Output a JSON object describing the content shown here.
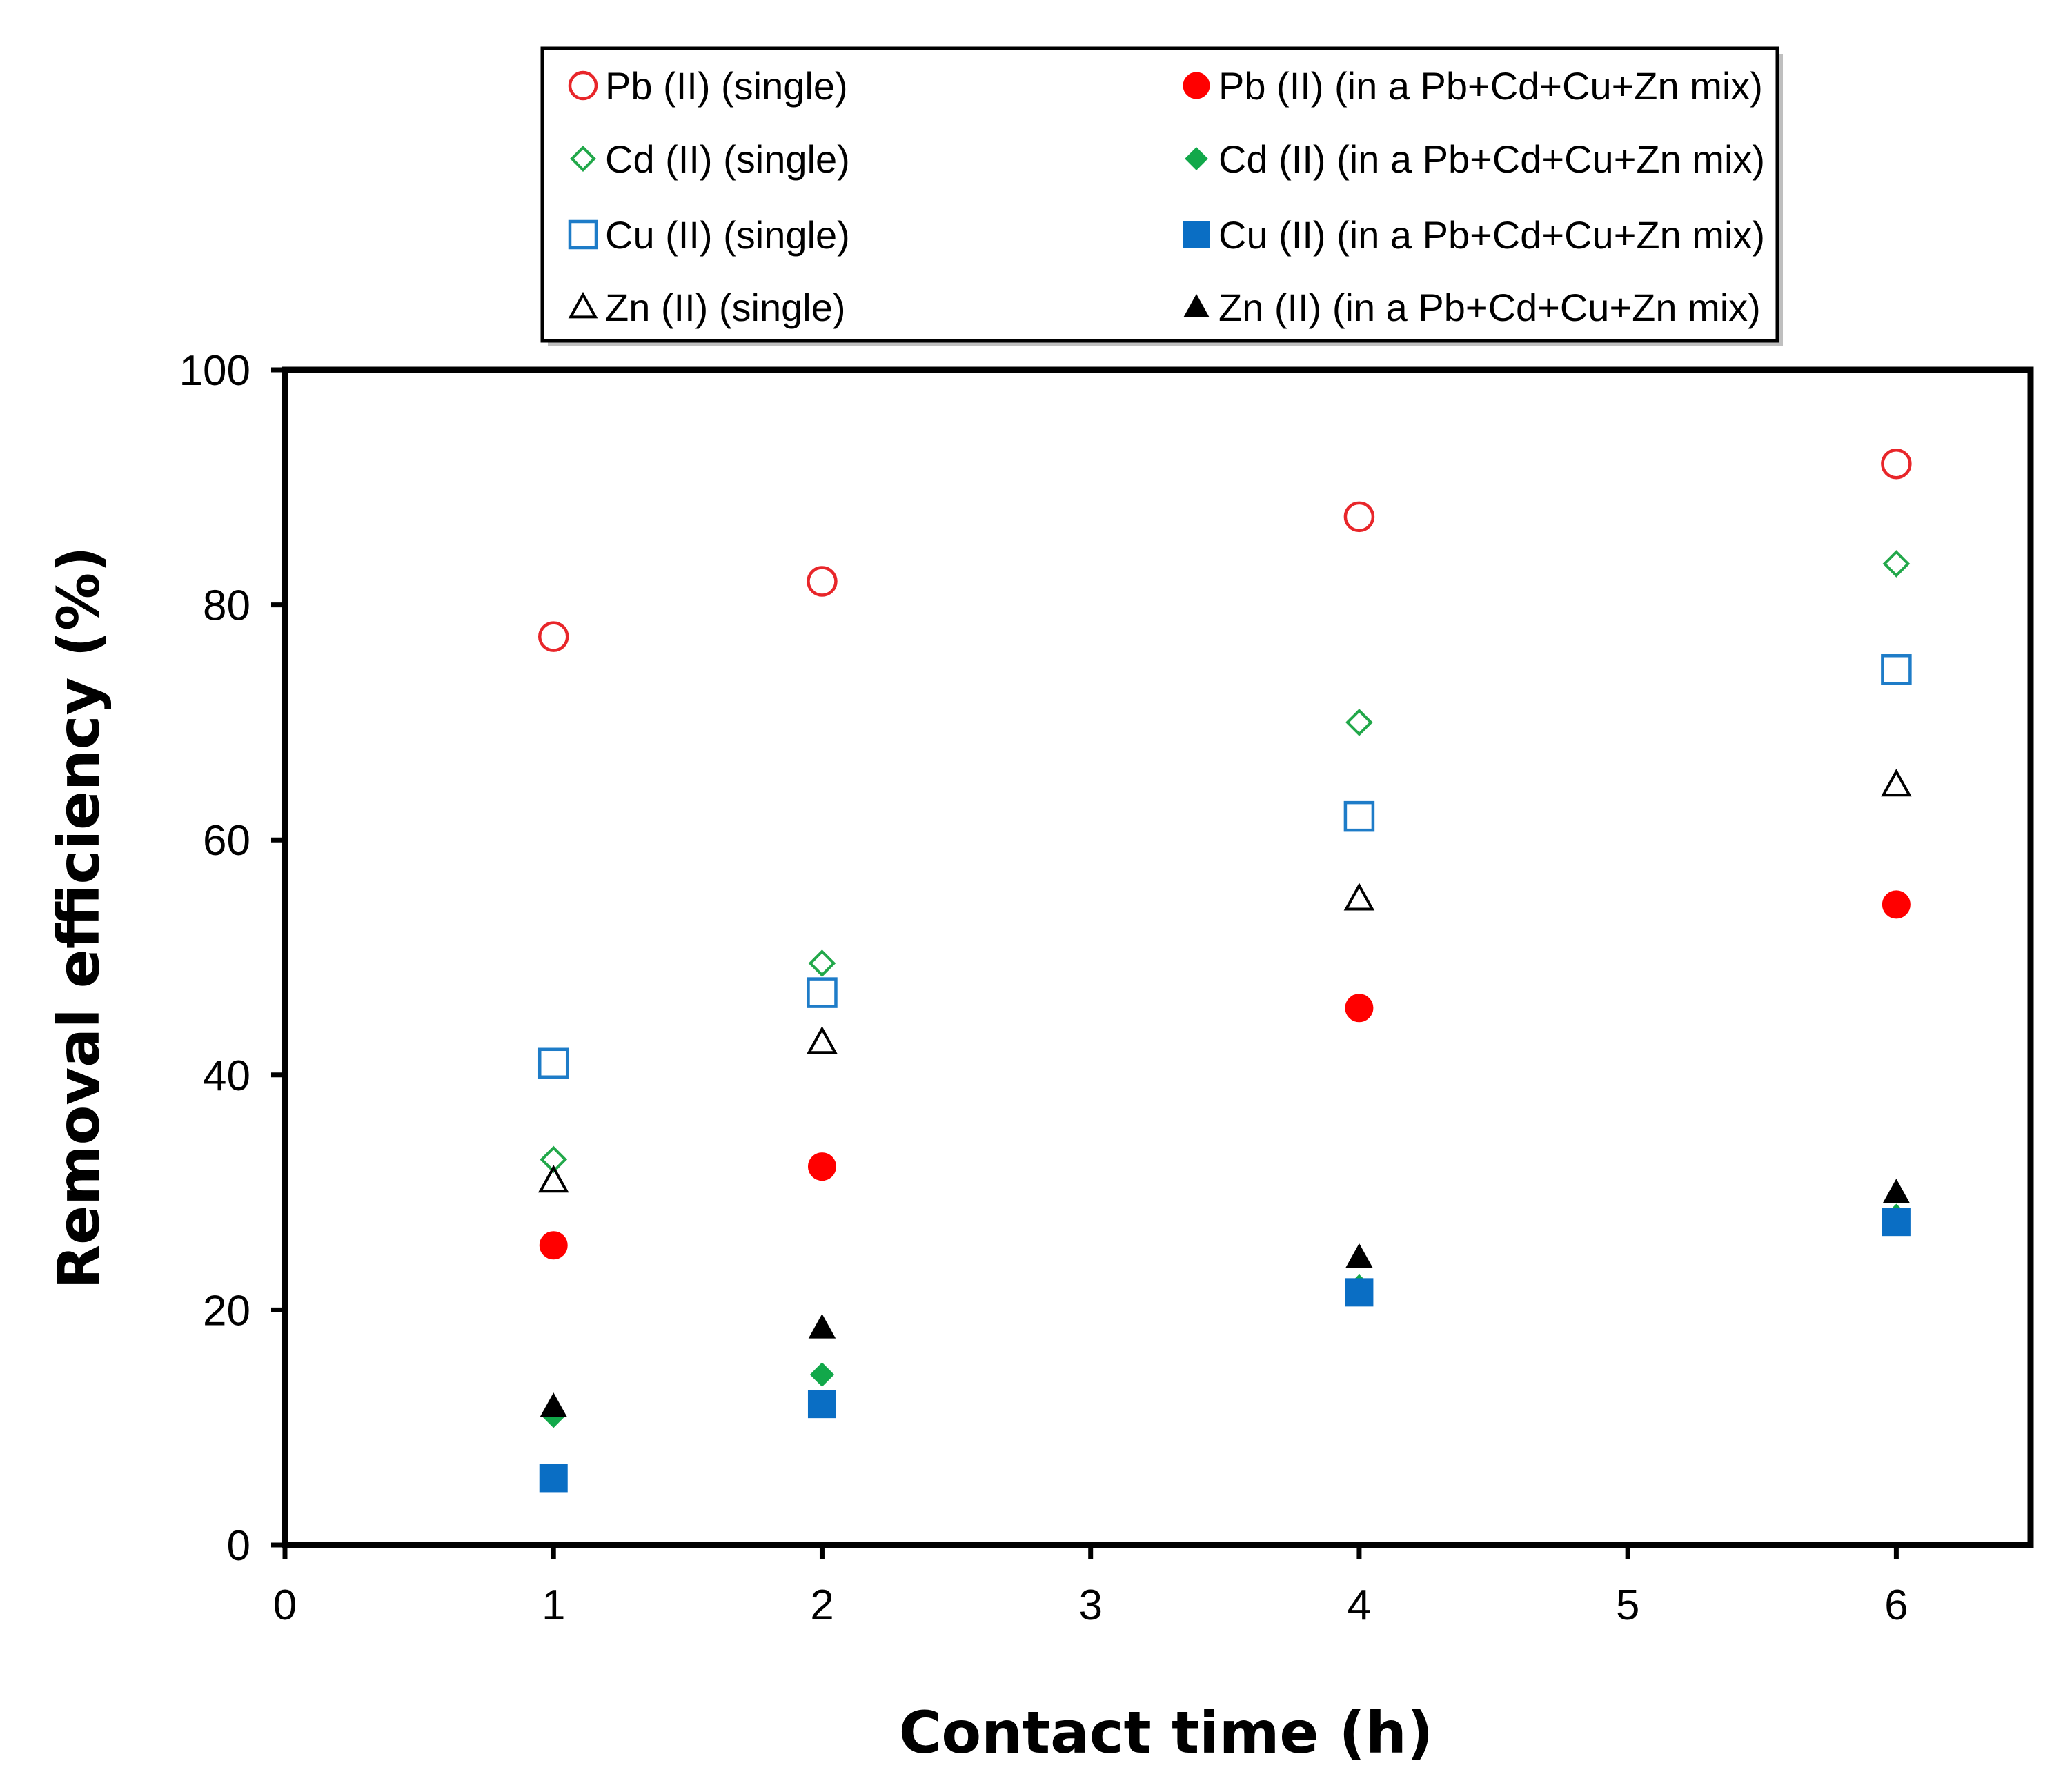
{
  "chart_data": {
    "type": "scatter",
    "title": "",
    "xlabel": "Contact time (h)",
    "ylabel": "Removal efficiency (%)",
    "xlim": [
      0,
      6.5
    ],
    "ylim": [
      0,
      100
    ],
    "xticks": [
      0,
      1,
      2,
      3,
      4,
      5,
      6
    ],
    "yticks": [
      0,
      20,
      40,
      60,
      80,
      100
    ],
    "grid": false,
    "legend_position": "top, above plot",
    "series": [
      {
        "name": "Pb (II) (single)",
        "marker": "circle",
        "filled": false,
        "color": "#e8262a",
        "x": [
          1,
          2,
          4,
          6
        ],
        "y": [
          77.3,
          82,
          87.5,
          92
        ]
      },
      {
        "name": "Pb (II) (in a Pb+Cd+Cu+Zn mix)",
        "marker": "circle",
        "filled": true,
        "color": "#ff0000",
        "x": [
          1,
          2,
          4,
          6
        ],
        "y": [
          25.5,
          32.2,
          45.7,
          54.5
        ]
      },
      {
        "name": "Cd (II) (single)",
        "marker": "diamond",
        "filled": false,
        "color": "#22a84a",
        "x": [
          1,
          2,
          4,
          6
        ],
        "y": [
          32.8,
          49.5,
          70,
          83.5
        ]
      },
      {
        "name": "Cd (II) (in a Pb+Cd+Cu+Zn mix)",
        "marker": "diamond",
        "filled": true,
        "color": "#12a84a",
        "x": [
          1,
          2,
          4,
          6
        ],
        "y": [
          11,
          14.5,
          22,
          28
        ]
      },
      {
        "name": "Cu (II) (single)",
        "marker": "square",
        "filled": false,
        "color": "#1e7cc8",
        "x": [
          1,
          2,
          4,
          6
        ],
        "y": [
          41,
          47,
          62,
          74.5
        ]
      },
      {
        "name": "Cu (II) (in a Pb+Cd+Cu+Zn mix)",
        "marker": "square",
        "filled": true,
        "color": "#0a6ec4",
        "x": [
          1,
          2,
          4,
          6
        ],
        "y": [
          5.7,
          12,
          21.5,
          27.5
        ]
      },
      {
        "name": "Zn (II) (single)",
        "marker": "triangle",
        "filled": false,
        "color": "#000000",
        "x": [
          1,
          2,
          4,
          6
        ],
        "y": [
          31,
          42.8,
          55,
          64.7
        ]
      },
      {
        "name": "Zn (II) (in a Pb+Cd+Cu+Zn mix)",
        "marker": "triangle",
        "filled": true,
        "color": "#000000",
        "x": [
          1,
          2,
          4,
          6
        ],
        "y": [
          11.8,
          18.5,
          24.5,
          30
        ]
      }
    ]
  }
}
